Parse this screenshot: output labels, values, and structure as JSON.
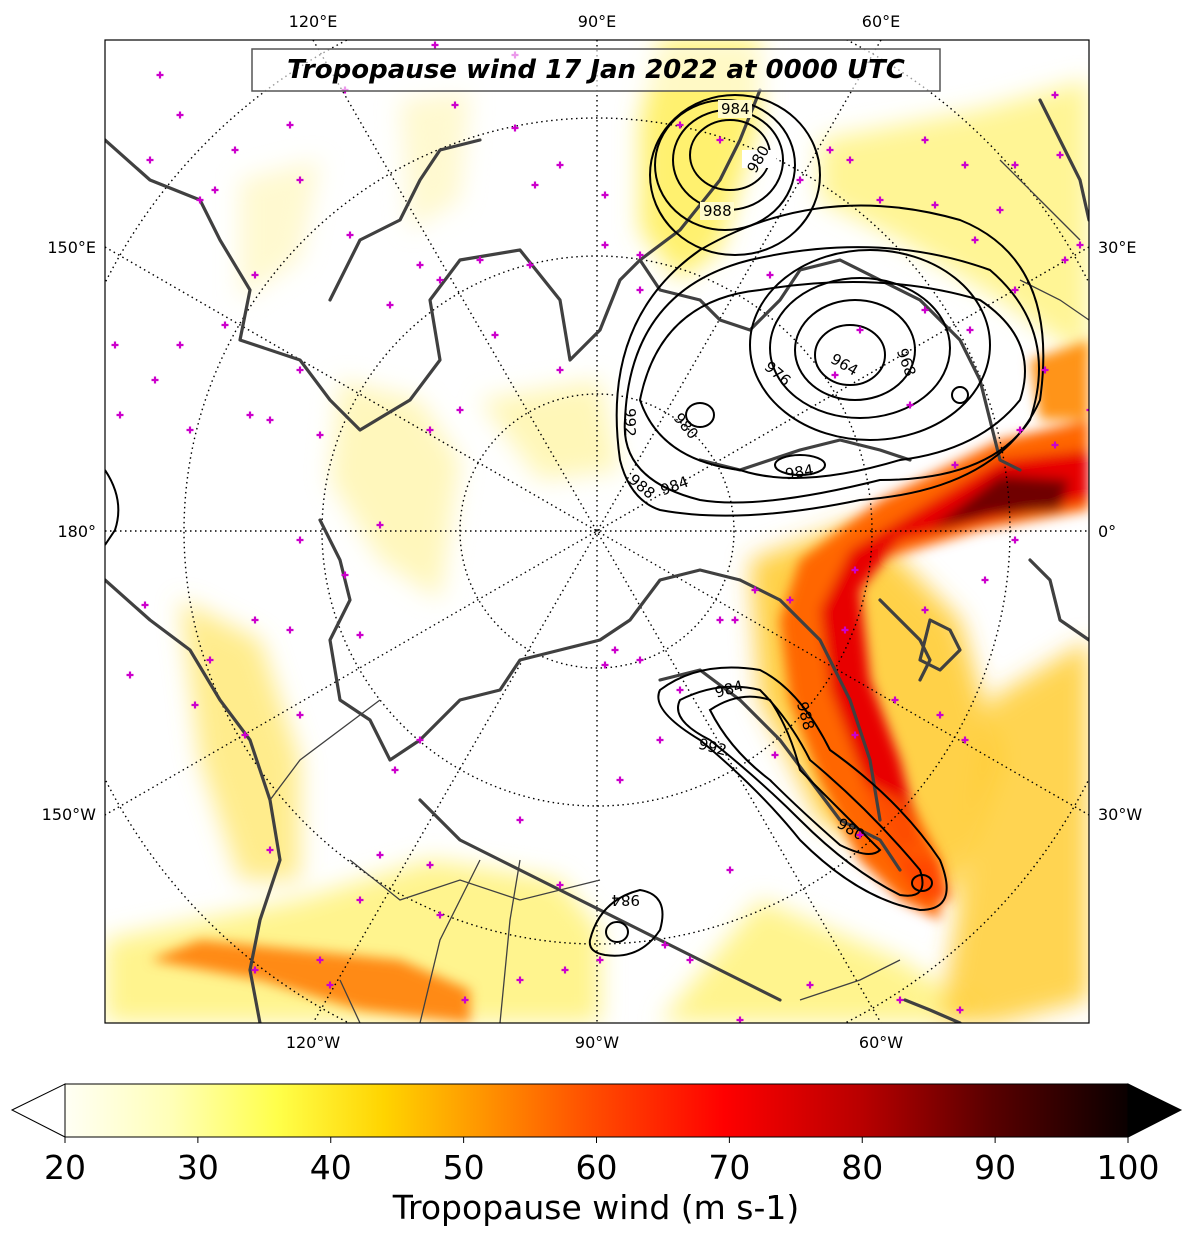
{
  "map": {
    "title": "Tropopause wind 17 Jan 2022 at 0000 UTC",
    "projection": "north-polar-stereographic",
    "graticule_lon_labels_top": [
      "120°E",
      "90°E",
      "60°E"
    ],
    "graticule_lon_labels_bottom": [
      "120°W",
      "90°W",
      "60°W"
    ],
    "graticule_lon_labels_left": [
      "150°E",
      "180°",
      "150°W"
    ],
    "graticule_lon_labels_right": [
      "30°E",
      "0°",
      "30°W"
    ],
    "pressure_contour_labels": [
      "984",
      "980",
      "988",
      "976",
      "964",
      "968",
      "992",
      "980",
      "984",
      "988",
      "984",
      "984",
      "988",
      "992",
      "980",
      "984"
    ],
    "colors": {
      "coastline": "#404040",
      "border": "#404040",
      "contour": "#000000",
      "station_marker": "#cc00cc",
      "graticule": "#000000"
    },
    "layers": [
      "tropopause-wind-shading",
      "mslp-contours",
      "coastlines",
      "country-borders",
      "graticule",
      "station-markers"
    ]
  },
  "colorbar": {
    "title": "Tropopause wind (m s-1)",
    "min": 20,
    "max": 100,
    "ticks": [
      "20",
      "30",
      "40",
      "50",
      "60",
      "70",
      "80",
      "90",
      "100"
    ],
    "extend": "both",
    "colormap": "hot_r"
  }
}
